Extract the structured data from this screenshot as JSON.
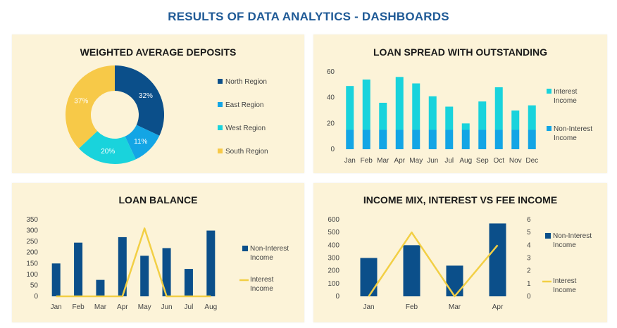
{
  "page": {
    "title": "RESULTS OF DATA ANALYTICS - DASHBOARDS"
  },
  "colors": {
    "dark_blue": "#0b4f8a",
    "mid_blue": "#13a5e5",
    "cyan": "#19d3dc",
    "yellow": "#f7c948",
    "line_yellow": "#f2cf45",
    "panel_bg": "#fcf3d8",
    "title_blue": "#1f5a96"
  },
  "chart_data": [
    {
      "id": "weighted_average_deposits",
      "type": "pie",
      "title": "WEIGHTED AVERAGE DEPOSITS",
      "donut": true,
      "legend_position": "right",
      "series": [
        {
          "name": "North Region",
          "value": 32,
          "label": "32%",
          "color": "#0b4f8a"
        },
        {
          "name": "East Region",
          "value": 11,
          "label": "11%",
          "color": "#13a5e5"
        },
        {
          "name": "West Region",
          "value": 20,
          "label": "20%",
          "color": "#19d3dc"
        },
        {
          "name": "South Region",
          "value": 37,
          "label": "37%",
          "color": "#f7c948"
        }
      ]
    },
    {
      "id": "loan_spread",
      "type": "bar",
      "stacked": true,
      "title": "LOAN SPREAD WITH OUTSTANDING",
      "categories": [
        "Jan",
        "Feb",
        "Mar",
        "Apr",
        "May",
        "Jun",
        "Jul",
        "Aug",
        "Sep",
        "Oct",
        "Nov",
        "Dec"
      ],
      "ylim": [
        0,
        60
      ],
      "yticks": [
        0,
        20,
        40,
        60
      ],
      "legend_position": "right",
      "series": [
        {
          "name": "Non-Interest Income",
          "color": "#13a5e5",
          "values": [
            15,
            15,
            15,
            15,
            15,
            15,
            15,
            15,
            15,
            15,
            15,
            15
          ]
        },
        {
          "name": "Interest Income",
          "color": "#19d3dc",
          "values": [
            34,
            39,
            21,
            41,
            36,
            26,
            18,
            5,
            22,
            33,
            15,
            19
          ]
        }
      ]
    },
    {
      "id": "loan_balance",
      "type": "bar",
      "title": "LOAN BALANCE",
      "categories": [
        "Jan",
        "Feb",
        "Mar",
        "Apr",
        "May",
        "Jun",
        "Jul",
        "Aug"
      ],
      "ylim": [
        0,
        350
      ],
      "yticks": [
        0,
        50,
        100,
        150,
        200,
        250,
        300,
        350
      ],
      "legend_position": "right",
      "series": [
        {
          "name": "Non-Interest Income",
          "kind": "bar",
          "color": "#0b4f8a",
          "values": [
            150,
            245,
            75,
            270,
            185,
            220,
            125,
            300
          ]
        },
        {
          "name": "Interest Income",
          "kind": "line",
          "color": "#f2cf45",
          "values": [
            0,
            0,
            0,
            0,
            310,
            0,
            0,
            0
          ]
        }
      ]
    },
    {
      "id": "income_mix",
      "type": "bar",
      "title": "INCOME MIX, INTEREST VS FEE INCOME",
      "categories": [
        "Jan",
        "Feb",
        "Mar",
        "Apr"
      ],
      "ylim": [
        0,
        600
      ],
      "yticks": [
        0,
        100,
        200,
        300,
        400,
        500,
        600
      ],
      "y2lim": [
        0,
        6
      ],
      "y2ticks": [
        0,
        1,
        2,
        3,
        4,
        5,
        6
      ],
      "legend_position": "right",
      "series": [
        {
          "name": "Non-Interest Income",
          "kind": "bar",
          "axis": "left",
          "color": "#0b4f8a",
          "values": [
            300,
            400,
            240,
            570
          ]
        },
        {
          "name": "Interest Income",
          "kind": "line",
          "axis": "right",
          "color": "#f2cf45",
          "values": [
            0,
            5,
            0,
            4
          ]
        }
      ]
    }
  ]
}
